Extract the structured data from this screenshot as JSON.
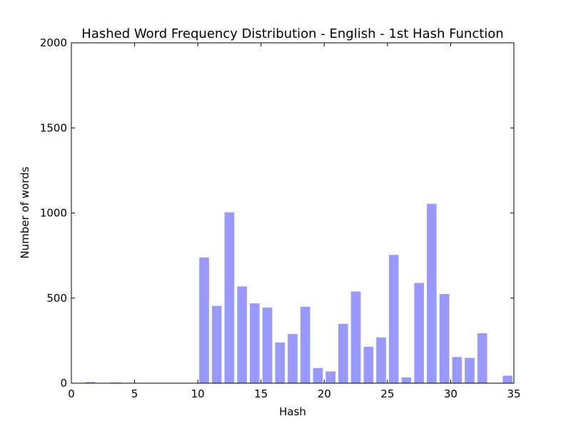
{
  "chart_data": {
    "type": "bar",
    "title": "Hashed Word Frequency Distribution - English - 1st Hash Function",
    "xlabel": "Hash",
    "ylabel": "Number of words",
    "xlim": [
      0,
      35
    ],
    "ylim": [
      0,
      2000
    ],
    "xticks": [
      0,
      5,
      10,
      15,
      20,
      25,
      30,
      35
    ],
    "yticks": [
      0,
      500,
      1000,
      1500,
      2000
    ],
    "bar_color": "#9999ff",
    "grid": false,
    "legend": "none",
    "x": [
      1,
      2,
      3,
      4,
      5,
      6,
      7,
      8,
      9,
      10,
      11,
      12,
      13,
      14,
      15,
      16,
      17,
      18,
      19,
      20,
      21,
      22,
      23,
      24,
      25,
      26,
      27,
      28,
      29,
      30,
      31,
      32,
      33,
      34
    ],
    "values": [
      8,
      2,
      5,
      2,
      1,
      1,
      1,
      1,
      2,
      740,
      455,
      1005,
      570,
      470,
      445,
      240,
      290,
      450,
      90,
      70,
      350,
      540,
      215,
      270,
      755,
      35,
      590,
      1055,
      525,
      155,
      150,
      295,
      0,
      45
    ]
  }
}
